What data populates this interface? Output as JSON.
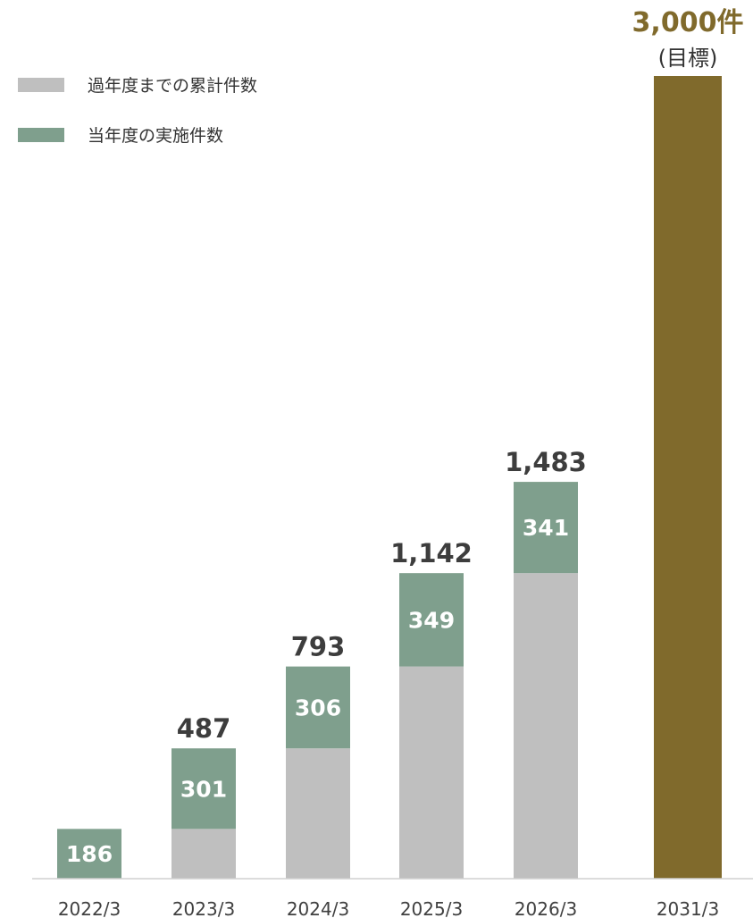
{
  "chart_data": {
    "type": "bar",
    "stacked": true,
    "categories": [
      "2022/3",
      "2023/3",
      "2024/3",
      "2025/3",
      "2026/3",
      "2031/3"
    ],
    "series": [
      {
        "name": "過年度までの累計件数",
        "color": "#bfbfbf",
        "values": [
          0,
          186,
          487,
          793,
          1142,
          null
        ]
      },
      {
        "name": "当年度の実施件数",
        "color": "#7f9f8d",
        "values": [
          186,
          301,
          306,
          349,
          341,
          null
        ]
      }
    ],
    "totals": [
      "",
      "487",
      "793",
      "1,142",
      "1,483",
      ""
    ],
    "target": {
      "category": "2031/3",
      "value": 3000,
      "label": "3,000件",
      "sublabel": "(目標)",
      "color": "#806a2c"
    },
    "ylim": [
      0,
      3000
    ],
    "grid": false,
    "legend": "top-left"
  }
}
